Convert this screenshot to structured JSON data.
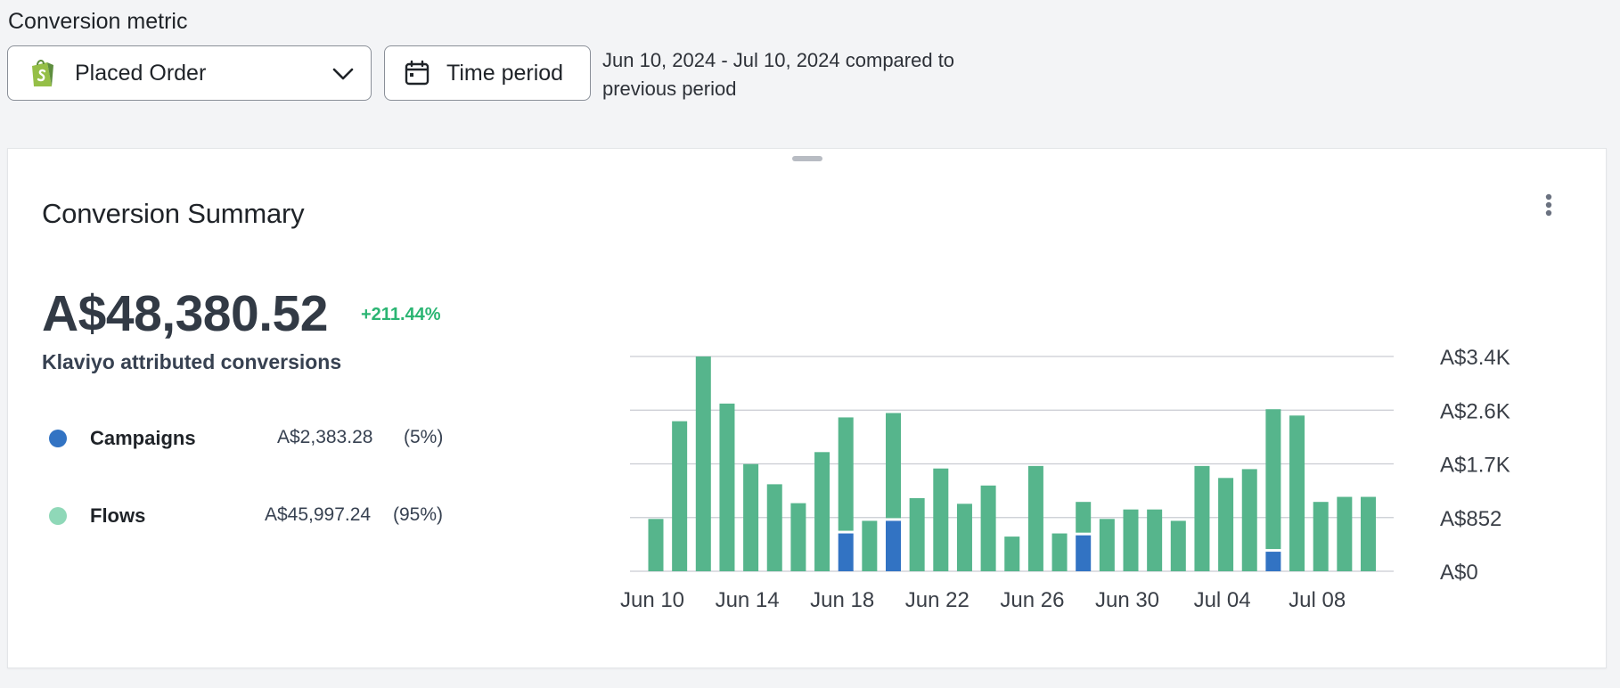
{
  "header": {
    "metric_label": "Conversion metric",
    "metric_select": {
      "value": "Placed Order",
      "icon": "shopify-icon",
      "chevron": "chevron-down-icon"
    },
    "time_button": {
      "label": "Time period",
      "icon": "calendar-icon"
    },
    "period_text_line1": "Jun 10, 2024 - Jul 10, 2024 compared to",
    "period_text_line2": "previous period"
  },
  "card": {
    "title": "Conversion Summary",
    "total_value": "A$48,380.52",
    "total_change": "+211.44%",
    "total_caption": "Klaviyo attributed conversions",
    "legend": [
      {
        "name": "Campaigns",
        "amount": "A$2,383.28",
        "pct": "(5%)",
        "color": "#3273c3"
      },
      {
        "name": "Flows",
        "amount": "A$45,997.24",
        "pct": "(95%)",
        "color": "#8fd8b8"
      }
    ]
  },
  "colors": {
    "flows_bar": "#56b58c",
    "campaigns_bar": "#3273c3",
    "positive_change": "#2bb573",
    "gridline": "#c9ccd2"
  },
  "chart_data": {
    "type": "bar",
    "stacked": true,
    "x": [
      "Jun 10",
      "Jun 11",
      "Jun 12",
      "Jun 13",
      "Jun 14",
      "Jun 15",
      "Jun 16",
      "Jun 17",
      "Jun 18",
      "Jun 19",
      "Jun 20",
      "Jun 21",
      "Jun 22",
      "Jun 23",
      "Jun 24",
      "Jun 25",
      "Jun 26",
      "Jun 27",
      "Jun 28",
      "Jun 29",
      "Jun 30",
      "Jul 01",
      "Jul 02",
      "Jul 03",
      "Jul 04",
      "Jul 05",
      "Jul 06",
      "Jul 07",
      "Jul 08",
      "Jul 09",
      "Jul 10"
    ],
    "x_tick_labels": [
      "Jun 10",
      "Jun 14",
      "Jun 18",
      "Jun 22",
      "Jun 26",
      "Jun 30",
      "Jul 04",
      "Jul 08"
    ],
    "y_tick_labels": [
      "A$0",
      "A$852",
      "A$1.7K",
      "A$2.6K",
      "A$3.4K"
    ],
    "ylim": [
      0,
      3407
    ],
    "y_axis_position": "right",
    "grid": true,
    "series": [
      {
        "name": "Campaigns",
        "values": [
          0,
          0,
          0,
          0,
          0,
          0,
          0,
          0,
          600,
          0,
          800,
          0,
          0,
          0,
          0,
          0,
          0,
          0,
          570,
          0,
          0,
          0,
          0,
          0,
          0,
          0,
          310,
          0,
          0,
          0,
          0
        ]
      },
      {
        "name": "Flows",
        "values": [
          830,
          2380,
          3407,
          2660,
          1700,
          1380,
          1080,
          1890,
          1840,
          800,
          1710,
          1160,
          1630,
          1070,
          1360,
          550,
          1670,
          600,
          530,
          830,
          980,
          980,
          800,
          1670,
          1480,
          1620,
          2260,
          2470,
          1100,
          1180,
          1180
        ]
      }
    ]
  }
}
